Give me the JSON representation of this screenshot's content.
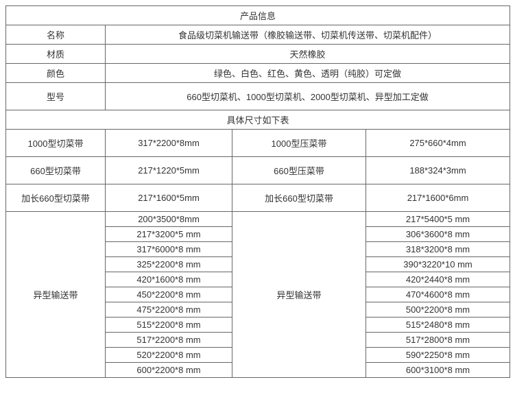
{
  "table": {
    "title": "产品信息",
    "rows_info": [
      {
        "label": "名称",
        "value": "食品级切菜机输送带（橡胶输送带、切菜机传送带、切菜机配件）"
      },
      {
        "label": "材质",
        "value": "天然橡胶"
      },
      {
        "label": "颜色",
        "value": "绿色、白色、红色、黄色、透明（纯胶）可定做"
      },
      {
        "label": "型号",
        "value": "660型切菜机、1000型切菜机、2000型切菜机、异型加工定做"
      }
    ],
    "size_header": "具体尺寸如下表",
    "size_rows": [
      {
        "c1": "1000型切菜带",
        "c2": "317*2200*8mm",
        "c3": "1000型压菜带",
        "c4": "275*660*4mm"
      },
      {
        "c1": "660型切菜带",
        "c2": "217*1220*5mm",
        "c3": "660型压菜带",
        "c4": "188*324*3mm"
      },
      {
        "c1": "加长660型切菜带",
        "c2": "217*1600*5mm",
        "c3": "加长660型切菜带",
        "c4": "217*1600*6mm"
      }
    ],
    "merged_block": {
      "left_label": "异型输送带",
      "right_label": "异型输送带",
      "rows": [
        {
          "c2": "200*3500*8mm",
          "c4": "217*5400*5 mm"
        },
        {
          "c2": "217*3200*5 mm",
          "c4": "306*3600*8 mm"
        },
        {
          "c2": "317*6000*8 mm",
          "c4": "318*3200*8 mm"
        },
        {
          "c2": "325*2200*8 mm",
          "c4": "390*3220*10 mm"
        },
        {
          "c2": "420*1600*8 mm",
          "c4": "420*2440*8 mm"
        },
        {
          "c2": "450*2200*8 mm",
          "c4": "470*4600*8 mm"
        },
        {
          "c2": "475*2200*8 mm",
          "c4": "500*2200*8 mm"
        },
        {
          "c2": "515*2200*8 mm",
          "c4": "515*2480*8 mm"
        },
        {
          "c2": "517*2200*8 mm",
          "c4": "517*2800*8 mm"
        },
        {
          "c2": "520*2200*8 mm",
          "c4": "590*2250*8 mm"
        },
        {
          "c2": "600*2200*8 mm",
          "c4": "600*3100*8 mm"
        }
      ]
    },
    "column_widths": [
      "145px",
      "185px",
      "195px",
      "210px"
    ],
    "border_color": "#666666",
    "text_color": "#333333",
    "font_size": 13,
    "background": "#ffffff"
  }
}
